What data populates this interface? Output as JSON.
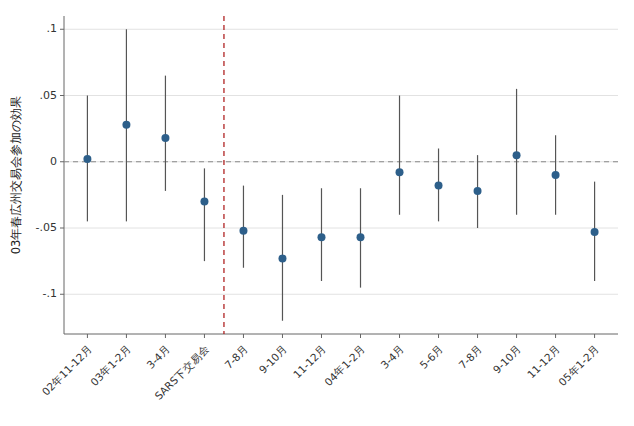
{
  "chart_data": {
    "type": "errorbar",
    "ylabel": "03年春広州交易会参加の効果",
    "categories": [
      "02年11-12月",
      "03年1-2月",
      "3-4月",
      "SARS下交易会",
      "7-8月",
      "9-10月",
      "11-12月",
      "04年1-2月",
      "3-4月",
      "5-6月",
      "7-8月",
      "9-10月",
      "11-12月",
      "05年1-2月"
    ],
    "values": [
      0.002,
      0.028,
      0.018,
      -0.03,
      -0.052,
      -0.073,
      -0.057,
      -0.057,
      -0.008,
      -0.018,
      -0.022,
      0.005,
      -0.01,
      -0.053
    ],
    "ci_lower": [
      -0.045,
      -0.045,
      -0.022,
      -0.075,
      -0.08,
      -0.12,
      -0.09,
      -0.095,
      -0.04,
      -0.045,
      -0.05,
      -0.04,
      -0.04,
      -0.09
    ],
    "ci_upper": [
      0.05,
      0.1,
      0.065,
      -0.005,
      -0.018,
      -0.025,
      -0.02,
      -0.02,
      0.05,
      0.01,
      0.005,
      0.055,
      0.02,
      -0.015
    ],
    "color": "#2d5f8a",
    "hline": {
      "y": 0
    },
    "vline": {
      "x": 3.5,
      "color": "#aa1111"
    },
    "ylim": [
      -0.13,
      0.11
    ],
    "yticks": [
      {
        "value": -0.1,
        "label": "-.1"
      },
      {
        "value": -0.05,
        "label": "-.05"
      },
      0,
      {
        "value": 0.05,
        "label": ".05"
      },
      {
        "value": 0.1,
        "label": ".1"
      }
    ],
    "grid": true
  }
}
